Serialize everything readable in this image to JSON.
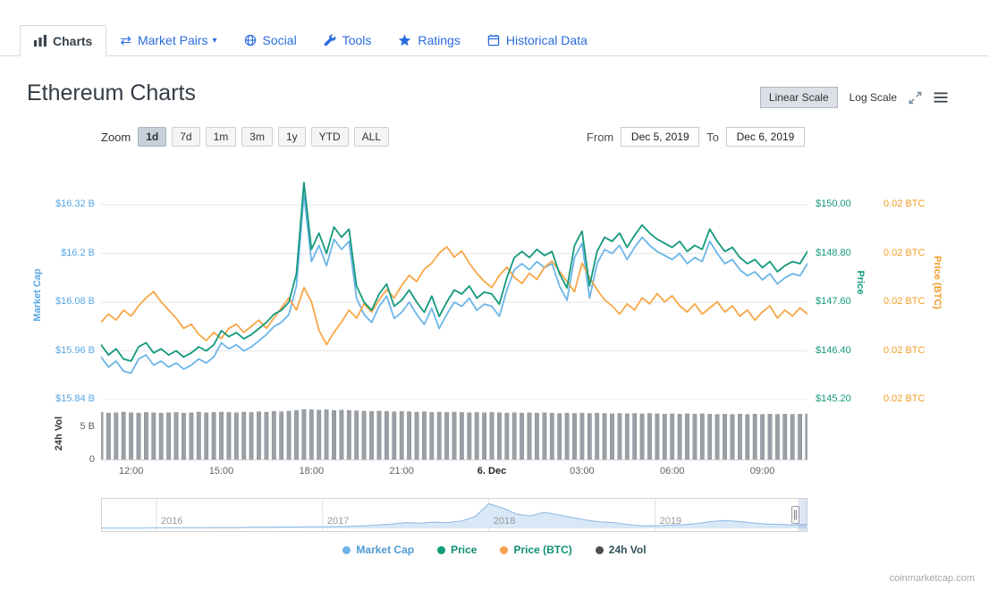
{
  "tabs": [
    {
      "label": "Charts",
      "active": true
    },
    {
      "label": "Market Pairs",
      "has_caret": true
    },
    {
      "label": "Social"
    },
    {
      "label": "Tools"
    },
    {
      "label": "Ratings"
    },
    {
      "label": "Historical Data"
    }
  ],
  "header": {
    "title": "Ethereum Charts",
    "linear_scale": "Linear Scale",
    "log_scale": "Log Scale"
  },
  "toolbar": {
    "zoom_label": "Zoom",
    "zoom_buttons": [
      "1d",
      "7d",
      "1m",
      "3m",
      "1y",
      "YTD",
      "ALL"
    ],
    "active_zoom": "1d",
    "from_label": "From",
    "from_value": "Dec 5, 2019",
    "to_label": "To",
    "to_value": "Dec 6, 2019"
  },
  "legend": [
    {
      "label": "Market Cap",
      "dot_color": "#6db3e8",
      "label_color": "#4f9ad3"
    },
    {
      "label": "Price",
      "dot_color": "#0f9b78",
      "label_color": "#0f8e74"
    },
    {
      "label": "Price (BTC)",
      "dot_color": "#f7a14a",
      "label_color": "#0f8e74"
    },
    {
      "label": "24h Vol",
      "dot_color": "#4d4d4d",
      "label_color": "#33535c"
    }
  ],
  "footer": {
    "watermark": "coinmarketcap.com"
  },
  "chart_data": {
    "type": "line",
    "title": "Ethereum Charts",
    "x": [
      "11:00",
      "11:15",
      "11:30",
      "11:45",
      "12:00",
      "12:15",
      "12:30",
      "12:45",
      "13:00",
      "13:15",
      "13:30",
      "13:45",
      "14:00",
      "14:15",
      "14:30",
      "14:45",
      "15:00",
      "15:15",
      "15:30",
      "15:45",
      "16:00",
      "16:15",
      "16:30",
      "16:45",
      "17:00",
      "17:15",
      "17:30",
      "17:45",
      "18:00",
      "18:15",
      "18:30",
      "18:45",
      "19:00",
      "19:15",
      "19:30",
      "19:45",
      "20:00",
      "20:15",
      "20:30",
      "20:45",
      "21:00",
      "21:15",
      "21:30",
      "21:45",
      "22:00",
      "22:15",
      "22:30",
      "22:45",
      "23:00",
      "23:15",
      "23:30",
      "23:45",
      "00:00",
      "00:15",
      "00:30",
      "00:45",
      "01:00",
      "01:15",
      "01:30",
      "01:45",
      "02:00",
      "02:15",
      "02:30",
      "02:45",
      "03:00",
      "03:15",
      "03:30",
      "03:45",
      "04:00",
      "04:15",
      "04:30",
      "04:45",
      "05:00",
      "05:15",
      "05:30",
      "05:45",
      "06:00",
      "06:15",
      "06:30",
      "06:45",
      "07:00",
      "07:15",
      "07:30",
      "07:45",
      "08:00",
      "08:15",
      "08:30",
      "08:45",
      "09:00",
      "09:15",
      "09:30",
      "09:45",
      "10:00",
      "10:15",
      "10:30"
    ],
    "series": [
      {
        "name": "Market Cap",
        "axis": "market_cap",
        "color": "#6cb5e8",
        "values": [
          15.945,
          15.92,
          15.935,
          15.91,
          15.905,
          15.94,
          15.95,
          15.925,
          15.935,
          15.92,
          15.93,
          15.915,
          15.925,
          15.94,
          15.93,
          15.945,
          15.98,
          15.965,
          15.975,
          15.96,
          15.97,
          15.985,
          16.0,
          16.02,
          16.03,
          16.05,
          16.12,
          16.345,
          16.18,
          16.22,
          16.17,
          16.235,
          16.21,
          16.23,
          16.09,
          16.05,
          16.03,
          16.07,
          16.095,
          16.04,
          16.055,
          16.08,
          16.05,
          16.025,
          16.065,
          16.015,
          16.05,
          16.08,
          16.07,
          16.09,
          16.06,
          16.075,
          16.07,
          16.045,
          16.11,
          16.16,
          16.175,
          16.16,
          16.18,
          16.165,
          16.175,
          16.12,
          16.085,
          16.19,
          16.225,
          16.09,
          16.175,
          16.21,
          16.2,
          16.22,
          16.185,
          16.215,
          16.24,
          16.22,
          16.205,
          16.195,
          16.185,
          16.2,
          16.175,
          16.19,
          16.18,
          16.23,
          16.2,
          16.175,
          16.185,
          16.16,
          16.145,
          16.155,
          16.135,
          16.15,
          16.125,
          16.14,
          16.15,
          16.145,
          16.175
        ]
      },
      {
        "name": "Price",
        "axis": "price",
        "color": "#12997c",
        "values": [
          146.55,
          146.3,
          146.45,
          146.2,
          146.15,
          146.5,
          146.6,
          146.35,
          146.45,
          146.3,
          146.4,
          146.25,
          146.35,
          146.5,
          146.4,
          146.55,
          146.9,
          146.75,
          146.85,
          146.7,
          146.8,
          146.95,
          147.1,
          147.3,
          147.4,
          147.6,
          148.3,
          150.55,
          148.9,
          149.3,
          148.8,
          149.45,
          149.2,
          149.4,
          148.0,
          147.6,
          147.4,
          147.8,
          148.05,
          147.5,
          147.65,
          147.9,
          147.6,
          147.35,
          147.75,
          147.25,
          147.6,
          147.9,
          147.8,
          148.0,
          147.7,
          147.85,
          147.8,
          147.55,
          148.2,
          148.7,
          148.85,
          148.7,
          148.9,
          148.75,
          148.85,
          148.3,
          147.95,
          149.0,
          149.35,
          148.0,
          148.85,
          149.2,
          149.1,
          149.3,
          148.95,
          149.25,
          149.5,
          149.3,
          149.15,
          149.05,
          148.95,
          149.1,
          148.85,
          149.0,
          148.9,
          149.4,
          149.1,
          148.85,
          148.95,
          148.7,
          148.55,
          148.65,
          148.45,
          148.6,
          148.35,
          148.5,
          148.6,
          148.55,
          148.85
        ]
      },
      {
        "name": "Price (BTC)",
        "axis": "price_btc",
        "color": "#f7a646",
        "values": [
          0.019992,
          0.019996,
          0.019993,
          0.019998,
          0.019995,
          0.02,
          0.020004,
          0.020007,
          0.020002,
          0.019998,
          0.019994,
          0.019989,
          0.019991,
          0.019986,
          0.019983,
          0.019987,
          0.019984,
          0.019989,
          0.019991,
          0.019987,
          0.01999,
          0.019993,
          0.019989,
          0.019994,
          0.019999,
          0.020004,
          0.019998,
          0.020009,
          0.020002,
          0.019988,
          0.019981,
          0.019987,
          0.019992,
          0.019998,
          0.019994,
          0.020001,
          0.019997,
          0.020003,
          0.020008,
          0.020004,
          0.02001,
          0.020015,
          0.020012,
          0.020018,
          0.020021,
          0.020026,
          0.020029,
          0.020024,
          0.020027,
          0.020021,
          0.020016,
          0.020012,
          0.020009,
          0.020015,
          0.020019,
          0.020014,
          0.020011,
          0.020016,
          0.020013,
          0.020019,
          0.020022,
          0.020017,
          0.020012,
          0.020007,
          0.020021,
          0.020014,
          0.020008,
          0.020003,
          0.02,
          0.019996,
          0.020001,
          0.019998,
          0.020004,
          0.020001,
          0.020006,
          0.020002,
          0.020005,
          0.02,
          0.019997,
          0.020001,
          0.019996,
          0.019999,
          0.020002,
          0.019997,
          0.02,
          0.019995,
          0.019998,
          0.019993,
          0.019997,
          0.02,
          0.019994,
          0.019998,
          0.019995,
          0.019999,
          0.019996
        ]
      },
      {
        "name": "24h Vol",
        "axis": "volume",
        "type": "column",
        "color": "#9aa0a5",
        "values": [
          7.15,
          7.05,
          7.1,
          7.2,
          7.1,
          7.05,
          7.15,
          7.1,
          7.05,
          7.1,
          7.15,
          7.05,
          7.1,
          7.2,
          7.1,
          7.15,
          7.2,
          7.15,
          7.1,
          7.2,
          7.15,
          7.25,
          7.2,
          7.3,
          7.25,
          7.35,
          7.45,
          7.6,
          7.55,
          7.5,
          7.55,
          7.45,
          7.5,
          7.45,
          7.4,
          7.35,
          7.3,
          7.35,
          7.3,
          7.25,
          7.3,
          7.25,
          7.2,
          7.25,
          7.15,
          7.2,
          7.15,
          7.2,
          7.15,
          7.1,
          7.15,
          7.1,
          7.15,
          7.1,
          7.05,
          7.1,
          7.05,
          7.1,
          7.05,
          7.1,
          7.05,
          7.0,
          7.05,
          7.0,
          7.05,
          7.0,
          7.05,
          7.0,
          6.95,
          7.0,
          6.95,
          7.0,
          6.95,
          7.0,
          6.95,
          6.9,
          6.95,
          6.9,
          6.95,
          6.9,
          6.95,
          6.9,
          6.85,
          6.9,
          6.85,
          6.9,
          6.85,
          6.9,
          6.85,
          6.9,
          6.85,
          6.9,
          6.85,
          6.9,
          6.95
        ]
      }
    ],
    "axes": {
      "market_cap": {
        "label": "Market Cap",
        "color": "#57a7e3",
        "ylim": [
          15.84,
          16.417
        ],
        "ticks": [
          "$16.32 B",
          "$16.2 B",
          "$16.08 B",
          "$15.96 B",
          "$15.84 B"
        ]
      },
      "price": {
        "label": "Price",
        "color": "#12997c",
        "ylim": [
          145.2,
          150.97
        ],
        "ticks": [
          "$150.00",
          "$148.80",
          "$147.60",
          "$146.40",
          "$145.20"
        ],
        "grid_values": [
          150.0,
          148.8,
          147.6,
          146.4,
          145.2
        ]
      },
      "price_btc": {
        "label": "Price (BTC)",
        "color": "#f29d26",
        "ylim": [
          0.019954,
          0.020069
        ],
        "ticks": [
          "0.02 BTC",
          "0.02 BTC",
          "0.02 BTC",
          "0.02 BTC",
          "0.02 BTC"
        ]
      },
      "volume": {
        "label": "24h Vol",
        "color": "#5a6169",
        "ylim": [
          0,
          8
        ],
        "ticks": [
          "5 B",
          "0"
        ],
        "grid_values": [
          5,
          0
        ]
      }
    },
    "xticks": [
      {
        "idx": 4,
        "label": "12:00"
      },
      {
        "idx": 16,
        "label": "15:00"
      },
      {
        "idx": 28,
        "label": "18:00"
      },
      {
        "idx": 40,
        "label": "21:00"
      },
      {
        "idx": 52,
        "label": "6. Dec",
        "emphasis": true
      },
      {
        "idx": 64,
        "label": "03:00"
      },
      {
        "idx": 76,
        "label": "06:00"
      },
      {
        "idx": 88,
        "label": "09:00"
      }
    ],
    "navigator": {
      "values": [
        0.01,
        0.01,
        0.01,
        0.01,
        0.02,
        0.02,
        0.02,
        0.02,
        0.03,
        0.03,
        0.03,
        0.04,
        0.04,
        0.05,
        0.05,
        0.06,
        0.06,
        0.07,
        0.08,
        0.1,
        0.13,
        0.17,
        0.22,
        0.2,
        0.24,
        0.22,
        0.28,
        0.45,
        0.95,
        0.78,
        0.55,
        0.48,
        0.62,
        0.52,
        0.42,
        0.32,
        0.25,
        0.22,
        0.15,
        0.1,
        0.1,
        0.12,
        0.14,
        0.18,
        0.26,
        0.3,
        0.27,
        0.21,
        0.17,
        0.15,
        0.13,
        0.14
      ],
      "year_labels": [
        {
          "idx": 4,
          "label": "2016"
        },
        {
          "idx": 16,
          "label": "2017"
        },
        {
          "idx": 28,
          "label": "2018"
        },
        {
          "idx": 40,
          "label": "2019"
        }
      ]
    }
  }
}
